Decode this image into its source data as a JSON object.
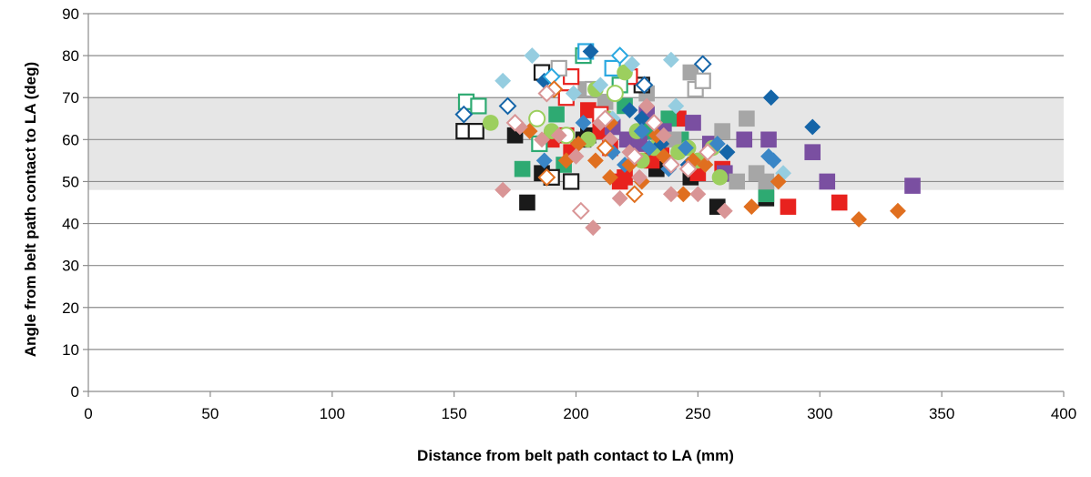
{
  "chart_data": {
    "type": "scatter",
    "title": "",
    "xlabel": "Distance from belt path contact to LA (mm)",
    "ylabel": "Angle from belt path contact to LA (deg)",
    "xlim": [
      0,
      400
    ],
    "ylim": [
      0,
      90
    ],
    "x_ticks": [
      "0",
      "50",
      "100",
      "150",
      "200",
      "250",
      "300",
      "350",
      "400"
    ],
    "y_ticks": [
      "0",
      "10",
      "20",
      "30",
      "40",
      "50",
      "60",
      "70",
      "80",
      "90"
    ],
    "grid": "horizontal",
    "legend": "none",
    "shaded_band": {
      "y_from": 48,
      "y_to": 70,
      "color": "#e6e6e6"
    },
    "series": [
      {
        "marker": "square",
        "fill": "filled",
        "color": "#1a1a1a",
        "points": [
          [
            180,
            45
          ],
          [
            175,
            61
          ],
          [
            186,
            52
          ],
          [
            205,
            61
          ],
          [
            233,
            53
          ],
          [
            247,
            51
          ],
          [
            258,
            44
          ],
          [
            278,
            46
          ],
          [
            203,
            60
          ]
        ]
      },
      {
        "marker": "square",
        "fill": "filled",
        "color": "#e8221e",
        "points": [
          [
            190,
            60
          ],
          [
            198,
            57
          ],
          [
            205,
            67
          ],
          [
            210,
            62
          ],
          [
            218,
            50
          ],
          [
            220,
            51
          ],
          [
            225,
            59
          ],
          [
            242,
            65
          ],
          [
            250,
            52
          ],
          [
            260,
            53
          ],
          [
            287,
            44
          ],
          [
            308,
            45
          ],
          [
            214,
            58
          ],
          [
            235,
            57
          ],
          [
            196,
            61
          ],
          [
            231,
            55
          ]
        ]
      },
      {
        "marker": "square",
        "fill": "filled",
        "color": "#2eaa72",
        "points": [
          [
            178,
            53
          ],
          [
            192,
            66
          ],
          [
            195,
            54
          ],
          [
            220,
            68
          ],
          [
            238,
            65
          ],
          [
            243,
            60
          ],
          [
            278,
            47
          ],
          [
            229,
            62
          ]
        ]
      },
      {
        "marker": "square",
        "fill": "filled",
        "color": "#7a4fa1",
        "points": [
          [
            221,
            60
          ],
          [
            229,
            66
          ],
          [
            236,
            62
          ],
          [
            248,
            64
          ],
          [
            255,
            59
          ],
          [
            261,
            52
          ],
          [
            269,
            60
          ],
          [
            279,
            60
          ],
          [
            297,
            57
          ],
          [
            303,
            50
          ],
          [
            338,
            49
          ],
          [
            215,
            63
          ],
          [
            226,
            59
          ]
        ]
      },
      {
        "marker": "square",
        "fill": "filled",
        "color": "#a6a6a6",
        "points": [
          [
            204,
            72
          ],
          [
            229,
            71
          ],
          [
            247,
            76
          ],
          [
            260,
            62
          ],
          [
            270,
            65
          ],
          [
            274,
            52
          ],
          [
            278,
            50
          ],
          [
            212,
            69
          ],
          [
            266,
            50
          ],
          [
            240,
            60
          ]
        ]
      },
      {
        "marker": "square",
        "fill": "open",
        "color": "#1a1a1a",
        "points": [
          [
            154,
            62
          ],
          [
            159,
            62
          ],
          [
            186,
            76
          ],
          [
            190,
            51
          ],
          [
            198,
            50
          ],
          [
            227,
            73
          ]
        ]
      },
      {
        "marker": "square",
        "fill": "open",
        "color": "#e8221e",
        "points": [
          [
            196,
            70
          ],
          [
            198,
            75
          ],
          [
            210,
            66
          ],
          [
            222,
            75
          ]
        ]
      },
      {
        "marker": "square",
        "fill": "open",
        "color": "#2eaa72",
        "points": [
          [
            155,
            69
          ],
          [
            160,
            68
          ],
          [
            185,
            59
          ],
          [
            203,
            80
          ],
          [
            218,
            73
          ]
        ]
      },
      {
        "marker": "square",
        "fill": "open",
        "color": "#a6a6a6",
        "points": [
          [
            193,
            77
          ],
          [
            207,
            72
          ],
          [
            249,
            72
          ],
          [
            252,
            74
          ]
        ]
      },
      {
        "marker": "square",
        "fill": "open",
        "color": "#2aa8e0",
        "points": [
          [
            204,
            81
          ],
          [
            215,
            77
          ]
        ]
      },
      {
        "marker": "circle",
        "fill": "filled",
        "color": "#9ccf5e",
        "points": [
          [
            165,
            64
          ],
          [
            190,
            62
          ],
          [
            205,
            60
          ],
          [
            208,
            72
          ],
          [
            213,
            65
          ],
          [
            220,
            76
          ],
          [
            225,
            62
          ],
          [
            232,
            58
          ],
          [
            242,
            57
          ],
          [
            250,
            55
          ],
          [
            256,
            58
          ],
          [
            259,
            51
          ],
          [
            227,
            55
          ],
          [
            246,
            58
          ]
        ]
      },
      {
        "marker": "circle",
        "fill": "open",
        "color": "#9ccf5e",
        "points": [
          [
            184,
            65
          ],
          [
            196,
            61
          ],
          [
            216,
            71
          ]
        ]
      },
      {
        "marker": "diamond",
        "fill": "filled",
        "color": "#1565a8",
        "points": [
          [
            187,
            74
          ],
          [
            206,
            81
          ],
          [
            222,
            67
          ],
          [
            235,
            59
          ],
          [
            280,
            70
          ],
          [
            297,
            63
          ],
          [
            262,
            57
          ],
          [
            227,
            65
          ],
          [
            246,
            54
          ]
        ]
      },
      {
        "marker": "diamond",
        "fill": "filled",
        "color": "#3a86c6",
        "points": [
          [
            187,
            55
          ],
          [
            203,
            64
          ],
          [
            215,
            57
          ],
          [
            227,
            62
          ],
          [
            238,
            53
          ],
          [
            245,
            58
          ],
          [
            258,
            59
          ],
          [
            279,
            56
          ],
          [
            281,
            55
          ],
          [
            230,
            58
          ],
          [
            220,
            54
          ]
        ]
      },
      {
        "marker": "diamond",
        "fill": "filled",
        "color": "#95cde0",
        "points": [
          [
            170,
            74
          ],
          [
            182,
            80
          ],
          [
            199,
            71
          ],
          [
            210,
            73
          ],
          [
            223,
            78
          ],
          [
            239,
            79
          ],
          [
            241,
            68
          ],
          [
            285,
            52
          ],
          [
            215,
            65
          ]
        ]
      },
      {
        "marker": "diamond",
        "fill": "filled",
        "color": "#e06f1f",
        "points": [
          [
            181,
            62
          ],
          [
            196,
            55
          ],
          [
            201,
            59
          ],
          [
            208,
            55
          ],
          [
            214,
            51
          ],
          [
            222,
            54
          ],
          [
            227,
            50
          ],
          [
            236,
            56
          ],
          [
            244,
            47
          ],
          [
            248,
            55
          ],
          [
            253,
            54
          ],
          [
            272,
            44
          ],
          [
            283,
            50
          ],
          [
            316,
            41
          ],
          [
            332,
            43
          ],
          [
            233,
            61
          ],
          [
            214,
            64
          ]
        ]
      },
      {
        "marker": "diamond",
        "fill": "filled",
        "color": "#d99596",
        "points": [
          [
            170,
            48
          ],
          [
            177,
            63
          ],
          [
            186,
            60
          ],
          [
            193,
            61
          ],
          [
            200,
            56
          ],
          [
            207,
            39
          ],
          [
            210,
            64
          ],
          [
            218,
            46
          ],
          [
            222,
            57
          ],
          [
            229,
            68
          ],
          [
            239,
            47
          ],
          [
            250,
            47
          ],
          [
            261,
            43
          ],
          [
            226,
            51
          ],
          [
            236,
            61
          ],
          [
            214,
            60
          ]
        ]
      },
      {
        "marker": "diamond",
        "fill": "open",
        "color": "#1565a8",
        "points": [
          [
            154,
            66
          ],
          [
            172,
            68
          ],
          [
            228,
            73
          ],
          [
            252,
            78
          ]
        ]
      },
      {
        "marker": "diamond",
        "fill": "open",
        "color": "#2aa8e0",
        "points": [
          [
            190,
            75
          ],
          [
            218,
            80
          ]
        ]
      },
      {
        "marker": "diamond",
        "fill": "open",
        "color": "#e06f1f",
        "points": [
          [
            188,
            51
          ],
          [
            191,
            72
          ],
          [
            212,
            58
          ],
          [
            224,
            47
          ]
        ]
      },
      {
        "marker": "diamond",
        "fill": "open",
        "color": "#d99596",
        "points": [
          [
            175,
            64
          ],
          [
            188,
            71
          ],
          [
            202,
            43
          ],
          [
            212,
            65
          ],
          [
            224,
            56
          ],
          [
            232,
            64
          ],
          [
            239,
            54
          ],
          [
            246,
            53
          ],
          [
            254,
            57
          ]
        ]
      }
    ]
  }
}
